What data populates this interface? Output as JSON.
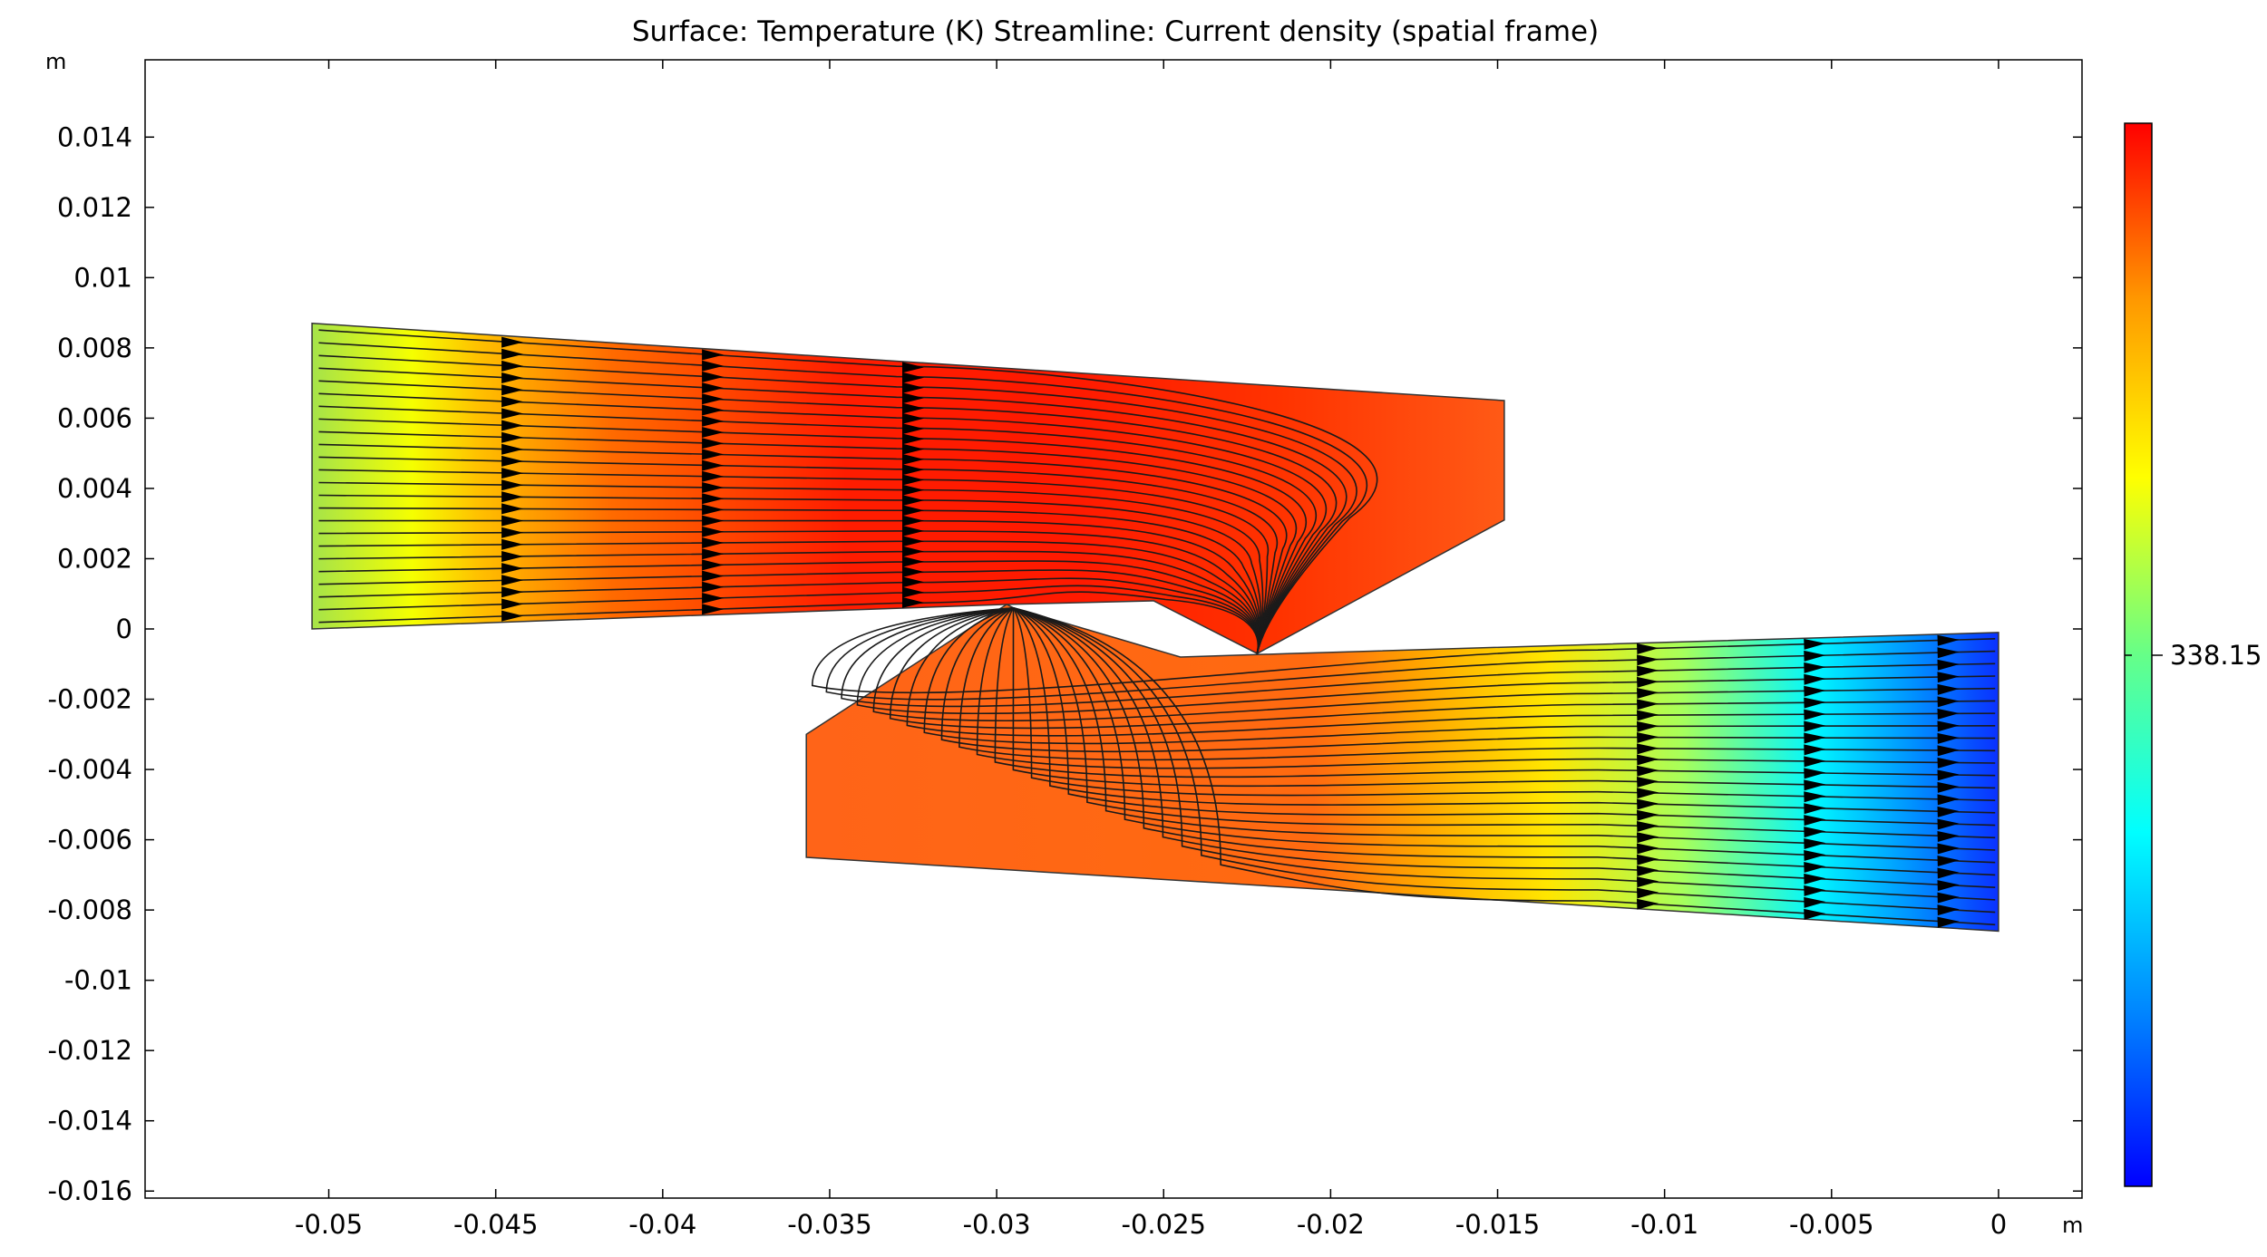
{
  "chart_data": {
    "type": "heatmap",
    "title": "Surface: Temperature (K)  Streamline: Current density (spatial frame)",
    "x_unit": "m",
    "y_unit": "m",
    "xlim": [
      -0.0555,
      0.0025
    ],
    "ylim": [
      -0.0162,
      0.0162
    ],
    "x_ticks": [
      -0.05,
      -0.045,
      -0.04,
      -0.035,
      -0.03,
      -0.025,
      -0.02,
      -0.015,
      -0.01,
      -0.005,
      0
    ],
    "x_tick_labels": [
      "-0.05",
      "-0.045",
      "-0.04",
      "-0.035",
      "-0.03",
      "-0.025",
      "-0.02",
      "-0.015",
      "-0.01",
      "-0.005",
      "0"
    ],
    "y_ticks": [
      0.014,
      0.012,
      0.01,
      0.008,
      0.006,
      0.004,
      0.002,
      0,
      -0.002,
      -0.004,
      -0.006,
      -0.008,
      -0.01,
      -0.012,
      -0.014,
      -0.016
    ],
    "y_tick_labels": [
      "0.014",
      "0.012",
      "0.01",
      "0.008",
      "0.006",
      "0.004",
      "0.002",
      "0",
      "-0.002",
      "-0.004",
      "-0.006",
      "-0.008",
      "-0.01",
      "-0.012",
      "-0.014",
      "-0.016"
    ],
    "grid": false,
    "colorbar": {
      "placement": "right",
      "colormap": "rainbow",
      "tick_labels": [
        "338.15"
      ],
      "colors": [
        "#0000ff",
        "#0088ff",
        "#00ffff",
        "#66ff88",
        "#ffff00",
        "#ff9900",
        "#ff0000"
      ]
    },
    "upper_electrode": {
      "outline": [
        [
          -0.0505,
          0.0087
        ],
        [
          -0.0148,
          0.0065
        ],
        [
          -0.0148,
          0.0031
        ],
        [
          -0.0222,
          -0.0007
        ],
        [
          -0.0253,
          0.0008
        ],
        [
          -0.0297,
          0.0007
        ],
        [
          -0.0505,
          0.0
        ]
      ],
      "heat_colors": [
        [
          -0.0505,
          "#a5e34a"
        ],
        [
          -0.0475,
          "#f5ff00"
        ],
        [
          -0.0455,
          "#ffc000"
        ],
        [
          -0.0415,
          "#ff6a00"
        ],
        [
          -0.0345,
          "#ff1c00"
        ],
        [
          -0.0275,
          "#ff1a00"
        ],
        [
          -0.0215,
          "#ff3300"
        ],
        [
          -0.0148,
          "#ff5a16"
        ]
      ]
    },
    "lower_electrode": {
      "outline": [
        [
          -0.0295,
          0.0006
        ],
        [
          -0.0297,
          0.0007
        ],
        [
          -0.0357,
          -0.003
        ],
        [
          -0.0357,
          -0.0065
        ],
        [
          0.0,
          -0.0086
        ],
        [
          0.0,
          -0.0001
        ],
        [
          -0.0212,
          -0.0007
        ],
        [
          -0.0245,
          -0.0008
        ]
      ],
      "heat_colors": [
        [
          -0.0357,
          "#ff6418"
        ],
        [
          -0.0205,
          "#ff6a10"
        ],
        [
          -0.0175,
          "#ffa200"
        ],
        [
          -0.0135,
          "#ffe600"
        ],
        [
          -0.0095,
          "#a8ff5a"
        ],
        [
          -0.0055,
          "#00f7ff"
        ],
        [
          -0.0025,
          "#008fff"
        ],
        [
          0.0,
          "#0a30ff"
        ]
      ]
    }
  }
}
